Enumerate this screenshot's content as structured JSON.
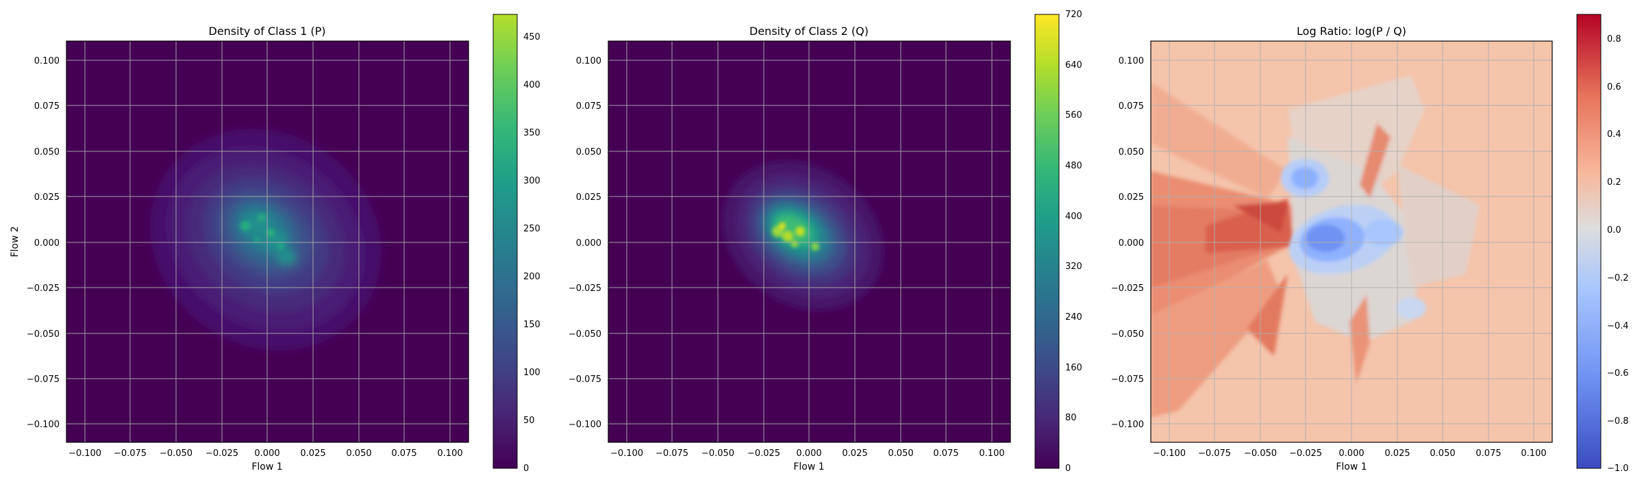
{
  "figure": {
    "panels": [
      {
        "title": "Density of Class 1 (P)",
        "xlabel": "Flow 1",
        "ylabel": "Flow 2",
        "xticks": [
          "−0.100",
          "−0.075",
          "−0.050",
          "−0.025",
          "0.000",
          "0.025",
          "0.050",
          "0.075",
          "0.100"
        ],
        "yticks": [
          "0.100",
          "0.075",
          "0.050",
          "0.025",
          "0.000",
          "−0.025",
          "−0.050",
          "−0.075",
          "−0.100"
        ],
        "colorbar_ticks": [
          "0",
          "50",
          "100",
          "150",
          "200",
          "250",
          "300",
          "350",
          "400",
          "450"
        ],
        "colormap": "viridis"
      },
      {
        "title": "Density of Class 2 (Q)",
        "xlabel": "Flow 1",
        "ylabel": "",
        "xticks": [
          "−0.100",
          "−0.075",
          "−0.050",
          "−0.025",
          "0.000",
          "0.025",
          "0.050",
          "0.075",
          "0.100"
        ],
        "yticks": [
          "0.100",
          "0.075",
          "0.050",
          "0.025",
          "0.000",
          "−0.025",
          "−0.050",
          "−0.075",
          "−0.100"
        ],
        "colorbar_ticks": [
          "0",
          "80",
          "160",
          "240",
          "320",
          "400",
          "480",
          "560",
          "640",
          "720"
        ],
        "colormap": "viridis"
      },
      {
        "title": "Log Ratio: log(P / Q)",
        "xlabel": "Flow 1",
        "ylabel": "",
        "xticks": [
          "−0.100",
          "−0.075",
          "−0.050",
          "−0.025",
          "0.000",
          "0.025",
          "0.050",
          "0.075",
          "0.100"
        ],
        "yticks": [
          "0.100",
          "0.075",
          "0.050",
          "0.025",
          "0.000",
          "−0.025",
          "−0.050",
          "−0.075",
          "−0.100"
        ],
        "colorbar_ticks": [
          "0.8",
          "0.6",
          "0.4",
          "0.2",
          "0.0",
          "−0.2",
          "−0.4",
          "−0.6",
          "−0.8",
          "−1.0"
        ],
        "colormap": "coolwarm"
      }
    ]
  },
  "chart_data": [
    {
      "type": "heatmap",
      "title": "Density of Class 1 (P)",
      "xlabel": "Flow 1",
      "ylabel": "Flow 2",
      "xlim": [
        -0.11,
        0.11
      ],
      "ylim": [
        -0.11,
        0.11
      ],
      "xticks": [
        -0.1,
        -0.075,
        -0.05,
        -0.025,
        0.0,
        0.025,
        0.05,
        0.075,
        0.1
      ],
      "yticks": [
        -0.1,
        -0.075,
        -0.05,
        -0.025,
        0.0,
        0.025,
        0.05,
        0.075,
        0.1
      ],
      "grid": true,
      "colormap": "viridis",
      "colorbar_range": [
        0,
        475
      ],
      "colorbar_ticks": [
        0,
        50,
        100,
        150,
        200,
        250,
        300,
        350,
        400,
        450
      ],
      "density_peak_center": [
        0.0,
        0.005
      ],
      "density_peak_value": 450
    },
    {
      "type": "heatmap",
      "title": "Density of Class 2 (Q)",
      "xlabel": "Flow 1",
      "ylabel": "",
      "xlim": [
        -0.11,
        0.11
      ],
      "ylim": [
        -0.11,
        0.11
      ],
      "xticks": [
        -0.1,
        -0.075,
        -0.05,
        -0.025,
        0.0,
        0.025,
        0.05,
        0.075,
        0.1
      ],
      "yticks": [
        -0.1,
        -0.075,
        -0.05,
        -0.025,
        0.0,
        0.025,
        0.05,
        0.075,
        0.1
      ],
      "grid": true,
      "colormap": "viridis",
      "colorbar_range": [
        0,
        720
      ],
      "colorbar_ticks": [
        0,
        80,
        160,
        240,
        320,
        400,
        480,
        560,
        640,
        720
      ],
      "density_peak_center": [
        -0.01,
        0.002
      ],
      "density_peak_value": 720
    },
    {
      "type": "heatmap",
      "title": "Log Ratio: log(P / Q)",
      "xlabel": "Flow 1",
      "ylabel": "",
      "xlim": [
        -0.11,
        0.11
      ],
      "ylim": [
        -0.11,
        0.11
      ],
      "xticks": [
        -0.1,
        -0.075,
        -0.05,
        -0.025,
        0.0,
        0.025,
        0.05,
        0.075,
        0.1
      ],
      "yticks": [
        -0.1,
        -0.075,
        -0.05,
        -0.025,
        0.0,
        0.025,
        0.05,
        0.075,
        0.1
      ],
      "grid": true,
      "colormap": "coolwarm",
      "colorbar_range": [
        -1.0,
        0.9
      ],
      "colorbar_ticks": [
        -1.0,
        -0.8,
        -0.6,
        -0.4,
        -0.2,
        0.0,
        0.2,
        0.4,
        0.6,
        0.8
      ],
      "negative_region_center": [
        -0.01,
        0.0
      ],
      "positive_region_center": [
        -0.05,
        0.0
      ],
      "background_value": 0.25
    }
  ]
}
